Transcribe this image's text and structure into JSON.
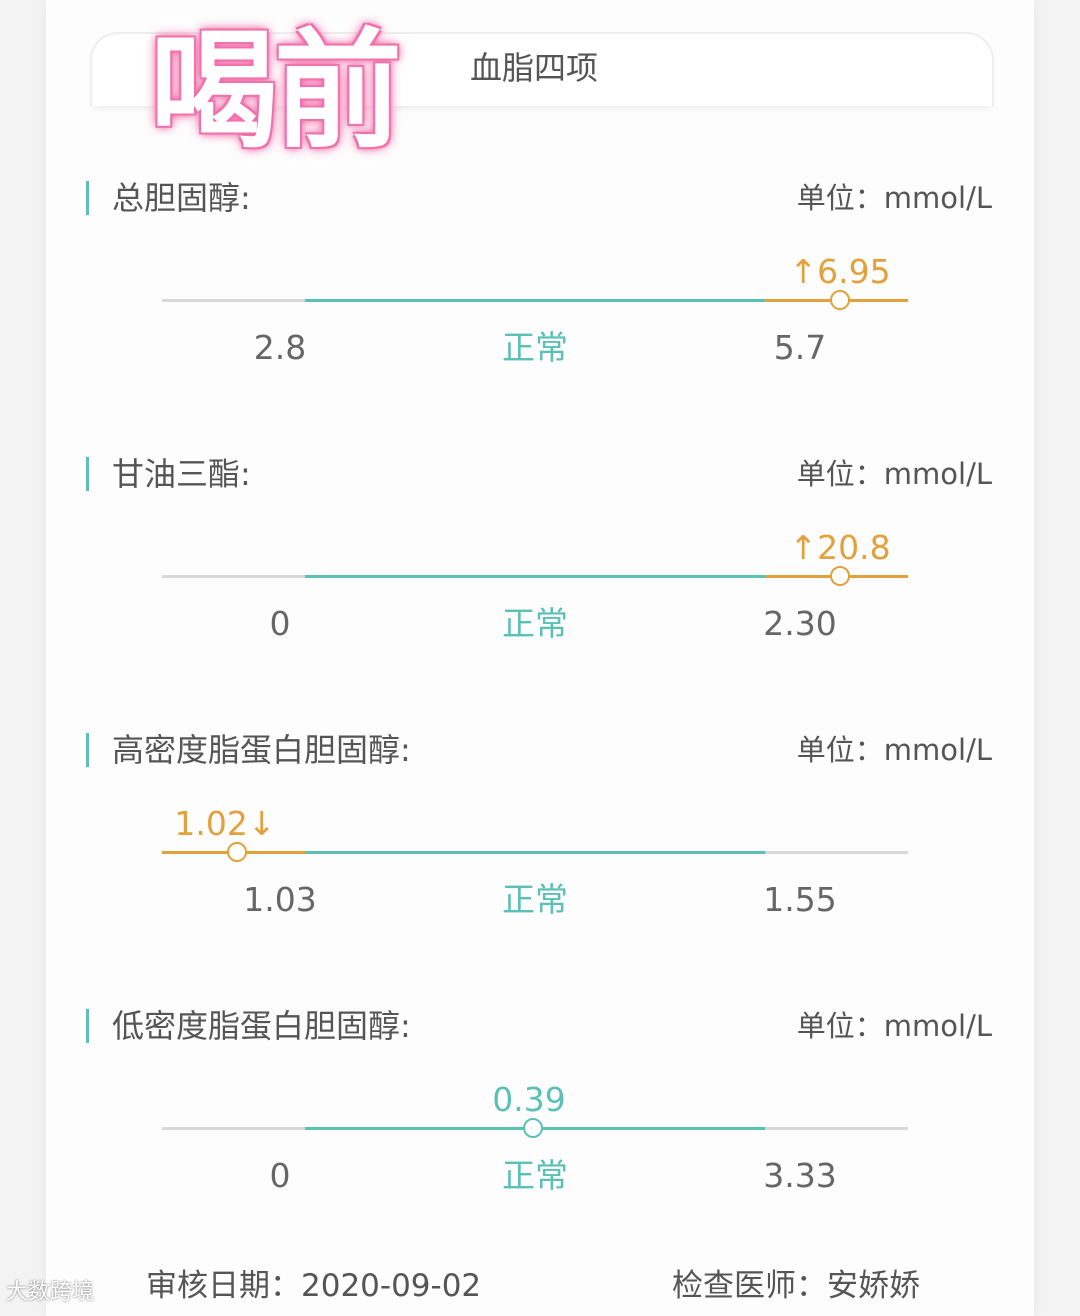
{
  "overlay_text": "喝前",
  "header": {
    "title": "血脂四项"
  },
  "normal_label": "正常",
  "colors": {
    "normal": "#5bc0b5",
    "abnormal": "#e3a13b",
    "overlay": "#f06aa8"
  },
  "items": [
    {
      "name": "总胆固醇:",
      "unit": "单位：mmol/L",
      "value": "6.95",
      "flag": "↑",
      "status": "high",
      "low": "2.8",
      "high": "5.7"
    },
    {
      "name": "甘油三酯:",
      "unit": "单位：mmol/L",
      "value": "20.8",
      "flag": "↑",
      "status": "high",
      "low": "0",
      "high": "2.30"
    },
    {
      "name": "高密度脂蛋白胆固醇:",
      "unit": "单位：mmol/L",
      "value": "1.02",
      "flag": "↓",
      "status": "low",
      "low": "1.03",
      "high": "1.55"
    },
    {
      "name": "低密度脂蛋白胆固醇:",
      "unit": "单位：mmol/L",
      "value": "0.39",
      "flag": "",
      "status": "normal",
      "low": "0",
      "high": "3.33"
    }
  ],
  "footer": {
    "review_date": "审核日期：2020-09-02",
    "doctor": "检查医师：安娇娇"
  },
  "watermark_logo": "大数跨境"
}
